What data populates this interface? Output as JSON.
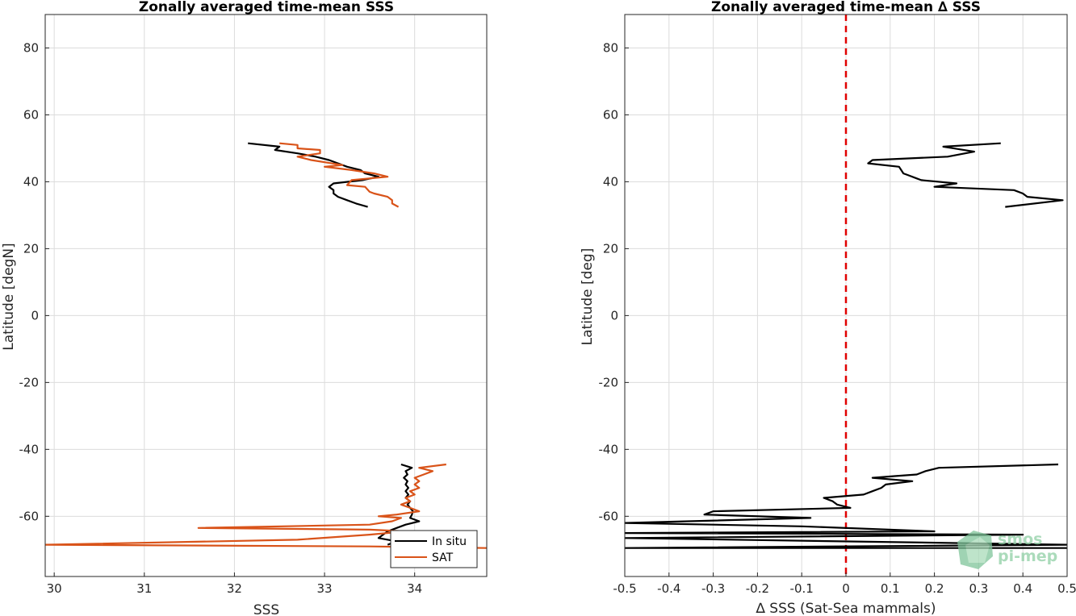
{
  "chart_data": [
    {
      "type": "line",
      "title": "Zonally averaged time-mean SSS",
      "xlabel": "SSS",
      "ylabel": "Latitude [degN]",
      "xlim": [
        29.9,
        34.8
      ],
      "ylim": [
        -78,
        90
      ],
      "xticks": [
        "30",
        "31",
        "32",
        "33",
        "34"
      ],
      "yticks": [
        "80",
        "60",
        "40",
        "20",
        "0",
        "-20",
        "-40",
        "-60"
      ],
      "grid": true,
      "legend_position": "bottom-right",
      "series": [
        {
          "name": "In situ",
          "color": "#000000",
          "points": [
            [
              32.15,
              51.5
            ],
            [
              32.5,
              50.5
            ],
            [
              32.45,
              49.5
            ],
            [
              32.7,
              48.5
            ],
            [
              32.9,
              47.5
            ],
            [
              33.05,
              46.5
            ],
            [
              33.15,
              45.5
            ],
            [
              33.25,
              44.5
            ],
            [
              33.4,
              43.5
            ],
            [
              33.45,
              42.5
            ],
            [
              33.6,
              41.5
            ],
            [
              33.42,
              40.5
            ],
            [
              33.1,
              39.5
            ],
            [
              33.05,
              38.5
            ],
            [
              33.1,
              37.5
            ],
            [
              33.1,
              36.5
            ],
            [
              33.15,
              35.5
            ],
            [
              33.25,
              34.5
            ],
            [
              33.35,
              33.5
            ],
            [
              33.48,
              32.5
            ],
            [
              33.85,
              -44.5
            ],
            [
              33.97,
              -45.5
            ],
            [
              33.9,
              -46.5
            ],
            [
              33.92,
              -47.5
            ],
            [
              33.88,
              -48.5
            ],
            [
              33.92,
              -49.5
            ],
            [
              33.9,
              -50.5
            ],
            [
              33.93,
              -51.5
            ],
            [
              33.9,
              -52.5
            ],
            [
              33.93,
              -53.5
            ],
            [
              33.9,
              -54.5
            ],
            [
              33.95,
              -55.5
            ],
            [
              33.92,
              -56.5
            ],
            [
              33.95,
              -57.5
            ],
            [
              33.98,
              -58.5
            ],
            [
              33.97,
              -59.5
            ],
            [
              33.95,
              -60.5
            ],
            [
              34.05,
              -61.5
            ],
            [
              33.9,
              -62.5
            ],
            [
              33.8,
              -63.5
            ],
            [
              33.7,
              -64.5
            ],
            [
              33.65,
              -65.5
            ],
            [
              33.6,
              -66.5
            ],
            [
              33.8,
              -67.5
            ],
            [
              33.7,
              -68.5
            ]
          ]
        },
        {
          "name": "SAT",
          "color": "#d95319",
          "points": [
            [
              32.5,
              51.5
            ],
            [
              32.7,
              51.0
            ],
            [
              32.7,
              50.0
            ],
            [
              32.95,
              49.5
            ],
            [
              32.95,
              48.5
            ],
            [
              32.7,
              47.5
            ],
            [
              32.85,
              46.5
            ],
            [
              33.2,
              45.0
            ],
            [
              33.0,
              44.5
            ],
            [
              33.3,
              43.5
            ],
            [
              33.55,
              42.5
            ],
            [
              33.7,
              41.5
            ],
            [
              33.3,
              40.5
            ],
            [
              33.25,
              39.0
            ],
            [
              33.45,
              38.5
            ],
            [
              33.5,
              37.0
            ],
            [
              33.55,
              36.5
            ],
            [
              33.7,
              35.5
            ],
            [
              33.75,
              34.5
            ],
            [
              33.75,
              33.5
            ],
            [
              33.82,
              32.5
            ],
            [
              34.35,
              -44.5
            ],
            [
              34.05,
              -45.5
            ],
            [
              34.2,
              -46.5
            ],
            [
              34.1,
              -47.5
            ],
            [
              34.0,
              -48.5
            ],
            [
              34.05,
              -49.5
            ],
            [
              34.0,
              -50.5
            ],
            [
              34.05,
              -51.5
            ],
            [
              33.95,
              -52.5
            ],
            [
              34.0,
              -53.5
            ],
            [
              33.9,
              -54.5
            ],
            [
              33.95,
              -55.5
            ],
            [
              33.85,
              -56.5
            ],
            [
              33.95,
              -57.5
            ],
            [
              34.05,
              -58.5
            ],
            [
              33.8,
              -59.5
            ],
            [
              33.6,
              -60.0
            ],
            [
              33.85,
              -60.5
            ],
            [
              33.75,
              -61.5
            ],
            [
              33.5,
              -62.5
            ],
            [
              31.6,
              -63.5
            ],
            [
              33.5,
              -64.0
            ],
            [
              33.9,
              -64.5
            ],
            [
              33.5,
              -65.5
            ],
            [
              32.7,
              -67.0
            ],
            [
              29.9,
              -68.5
            ],
            [
              33.5,
              -69.0
            ],
            [
              34.8,
              -69.5
            ]
          ]
        }
      ]
    },
    {
      "type": "line",
      "title": "Zonally averaged time-mean ∆ SSS",
      "xlabel": "∆ SSS (Sat-Sea mammals)",
      "ylabel": "Latitude [deg]",
      "xlim": [
        -0.5,
        0.5
      ],
      "ylim": [
        -78,
        90
      ],
      "xticks": [
        "-0.5",
        "-0.4",
        "-0.3",
        "-0.2",
        "-0.1",
        "0",
        "0.1",
        "0.2",
        "0.3",
        "0.4",
        "0.5"
      ],
      "yticks": [
        "80",
        "60",
        "40",
        "20",
        "0",
        "-20",
        "-40",
        "-60"
      ],
      "grid": true,
      "reference_line": {
        "x": 0,
        "color": "#e00000",
        "style": "dashed"
      },
      "series": [
        {
          "name": "",
          "color": "#000000",
          "points": [
            [
              0.35,
              51.5
            ],
            [
              0.22,
              50.5
            ],
            [
              0.29,
              49.0
            ],
            [
              0.23,
              47.5
            ],
            [
              0.06,
              46.5
            ],
            [
              0.05,
              45.5
            ],
            [
              0.12,
              44.5
            ],
            [
              0.13,
              42.5
            ],
            [
              0.14,
              42.0
            ],
            [
              0.16,
              41.0
            ],
            [
              0.17,
              40.5
            ],
            [
              0.25,
              39.5
            ],
            [
              0.2,
              38.5
            ],
            [
              0.38,
              37.5
            ],
            [
              0.4,
              36.5
            ],
            [
              0.41,
              35.5
            ],
            [
              0.49,
              34.5
            ],
            [
              0.36,
              32.5
            ],
            [
              0.48,
              -44.5
            ],
            [
              0.21,
              -45.5
            ],
            [
              0.18,
              -46.5
            ],
            [
              0.16,
              -47.5
            ],
            [
              0.11,
              -48.0
            ],
            [
              0.06,
              -48.5
            ],
            [
              0.15,
              -49.5
            ],
            [
              0.09,
              -50.5
            ],
            [
              0.08,
              -51.5
            ],
            [
              0.06,
              -52.5
            ],
            [
              0.04,
              -53.5
            ],
            [
              -0.05,
              -54.5
            ],
            [
              -0.03,
              -55.5
            ],
            [
              -0.02,
              -56.5
            ],
            [
              0.01,
              -57.5
            ],
            [
              -0.3,
              -58.5
            ],
            [
              -0.32,
              -59.5
            ],
            [
              -0.08,
              -60.5
            ],
            [
              -0.5,
              -62.0
            ],
            [
              -0.1,
              -63.0
            ],
            [
              0.2,
              -64.5
            ],
            [
              -0.5,
              -65.0
            ],
            [
              0.4,
              -65.5
            ],
            [
              -0.5,
              -66.5
            ],
            [
              0.5,
              -68.5
            ],
            [
              -0.5,
              -69.5
            ],
            [
              0.5,
              -69.5
            ]
          ]
        }
      ]
    }
  ],
  "legend": {
    "items": [
      {
        "label": "In situ",
        "color": "#000000"
      },
      {
        "label": "SAT",
        "color": "#d95319"
      }
    ]
  },
  "watermark": {
    "line1": "smos",
    "line2": "pi-mep"
  }
}
